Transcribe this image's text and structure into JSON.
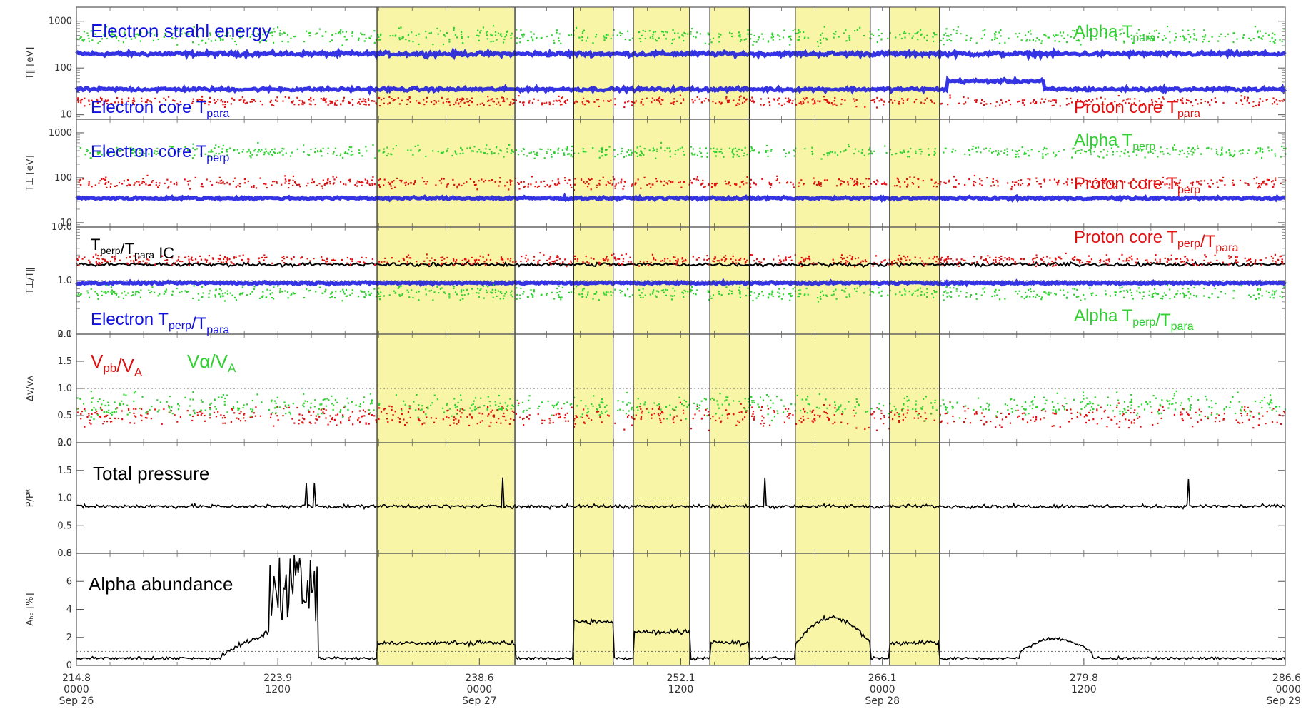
{
  "chart_data": {
    "type": "scatter",
    "colors": {
      "electron": "#1010e0",
      "proton": "#e01010",
      "alpha": "#30d030",
      "black": "#000000",
      "shade": "#f8f6a6"
    },
    "xaxis": {
      "ticks": [
        {
          "value": "214.8",
          "time": "0000",
          "date": "Sep 26"
        },
        {
          "value": "223.9",
          "time": "1200",
          "date": ""
        },
        {
          "value": "238.6",
          "time": "0000",
          "date": "Sep 27"
        },
        {
          "value": "252.1",
          "time": "1200",
          "date": ""
        },
        {
          "value": "266.1",
          "time": "0000",
          "date": "Sep 28"
        },
        {
          "value": "279.8",
          "time": "1200",
          "date": ""
        },
        {
          "value": "286.6",
          "time": "0000",
          "date": "Sep 29"
        }
      ]
    },
    "shaded_intervals_frac": [
      [
        0.2487,
        0.3627
      ],
      [
        0.4113,
        0.444
      ],
      [
        0.4607,
        0.5073
      ],
      [
        0.524,
        0.5567
      ],
      [
        0.5947,
        0.6567
      ],
      [
        0.6727,
        0.714
      ]
    ],
    "panels": [
      {
        "id": "t-para",
        "ylabel": "T∥ [eV]",
        "yscale": "log",
        "ylim": [
          8,
          2000
        ],
        "ticks": [
          "1000",
          "100",
          "10"
        ],
        "tick_values": [
          1000,
          100,
          10
        ],
        "annotations": [
          {
            "id": "electron-strahl-energy",
            "text": "Electron strahl energy",
            "sub": "",
            "tail": "",
            "color": "#1010e0",
            "size": 26
          },
          {
            "id": "electron-core-tpara",
            "text": "Electron core T",
            "sub": "para",
            "tail": "",
            "color": "#1010e0",
            "size": 24
          },
          {
            "id": "alpha-tpara",
            "text": "Alpha T",
            "sub": "para",
            "tail": "",
            "color": "#30d030",
            "size": 24
          },
          {
            "id": "proton-core-tpara",
            "text": "Proton core T",
            "sub": "para",
            "tail": "",
            "color": "#e01010",
            "size": 24
          }
        ],
        "series": [
          {
            "name": "strahl",
            "color": "#1010e0",
            "level": 200,
            "spread": 0.06,
            "kind": "band"
          },
          {
            "name": "e-core",
            "color": "#1010e0",
            "level": 35,
            "spread": 0.05,
            "kind": "band"
          },
          {
            "name": "alpha",
            "color": "#30d030",
            "level": 500,
            "spread": 0.25,
            "kind": "dots"
          },
          {
            "name": "proton",
            "color": "#e01010",
            "level": 20,
            "spread": 0.15,
            "kind": "dots"
          }
        ]
      },
      {
        "id": "t-perp",
        "ylabel": "T⊥ [eV]",
        "yscale": "log",
        "ylim": [
          8,
          2000
        ],
        "ticks": [
          "1000",
          "100",
          "10"
        ],
        "tick_values": [
          1000,
          100,
          10
        ],
        "annotations": [
          {
            "id": "electron-core-tperp",
            "text": "Electron core T",
            "sub": "perp",
            "tail": "",
            "color": "#1010e0",
            "size": 24
          },
          {
            "id": "alpha-tperp",
            "text": "Alpha T",
            "sub": "perp",
            "tail": "",
            "color": "#30d030",
            "size": 24
          },
          {
            "id": "proton-core-tperp",
            "text": "Proton core T",
            "sub": "perp",
            "tail": "",
            "color": "#e01010",
            "size": 24
          }
        ],
        "series": [
          {
            "name": "e-core",
            "color": "#1010e0",
            "level": 35,
            "spread": 0.04,
            "kind": "band"
          },
          {
            "name": "alpha",
            "color": "#30d030",
            "level": 400,
            "spread": 0.2,
            "kind": "dots"
          },
          {
            "name": "proton",
            "color": "#e01010",
            "level": 80,
            "spread": 0.18,
            "kind": "dots"
          }
        ]
      },
      {
        "id": "anisotropy",
        "ylabel": "T⊥/T∥",
        "yscale": "log",
        "ylim": [
          0.1,
          10
        ],
        "ticks": [
          "10.0",
          "1.0",
          "0.1"
        ],
        "tick_values": [
          10,
          1,
          0.1
        ],
        "ref_lines": [
          1
        ],
        "annotations": [
          {
            "id": "tperp-tpara-ic",
            "text": "T",
            "sub": "perp",
            "tail": "/T",
            "sub2": "para",
            "tail2": " IC",
            "color": "#000000",
            "size": 22
          },
          {
            "id": "proton-core-ratio",
            "text": "Proton core T",
            "sub": "perp",
            "tail": "/T",
            "sub2": "para",
            "tail2": "",
            "color": "#e01010",
            "size": 24
          },
          {
            "id": "electron-ratio",
            "text": "Electron T",
            "sub": "perp",
            "tail": "/T",
            "sub2": "para",
            "tail2": "",
            "color": "#1010e0",
            "size": 24
          },
          {
            "id": "alpha-ratio",
            "text": "Alpha T",
            "sub": "perp",
            "tail": "/T",
            "sub2": "para",
            "tail2": "",
            "color": "#30d030",
            "size": 24
          }
        ],
        "series": [
          {
            "name": "ic",
            "color": "#000000",
            "level": 2,
            "spread": 0.05,
            "kind": "line"
          },
          {
            "name": "proton",
            "color": "#e01010",
            "level": 2.5,
            "spread": 0.15,
            "kind": "dots"
          },
          {
            "name": "electron",
            "color": "#1010e0",
            "level": 0.9,
            "spread": 0.03,
            "kind": "band"
          },
          {
            "name": "alpha",
            "color": "#30d030",
            "level": 0.6,
            "spread": 0.18,
            "kind": "dots"
          }
        ]
      },
      {
        "id": "drift",
        "ylabel": "Δv/vᴀ",
        "yscale": "linear",
        "ylim": [
          0,
          2
        ],
        "ticks": [
          "2.0",
          "1.5",
          "1.0",
          "0.5",
          "0.0"
        ],
        "tick_values": [
          2,
          1.5,
          1,
          0.5,
          0
        ],
        "ref_lines": [
          1
        ],
        "annotations": [
          {
            "id": "vpb-va",
            "text": "V",
            "sub": "pb",
            "tail": "/V",
            "sub2": "A",
            "tail2": "",
            "color": "#e01010",
            "size": 26
          },
          {
            "id": "valpha-va",
            "text": "Vα/V",
            "sub": "A",
            "tail": "",
            "color": "#30d030",
            "size": 26
          }
        ],
        "series": [
          {
            "name": "vpb",
            "color": "#e01010",
            "level": 0.5,
            "spread": 0.3,
            "kind": "dots_lin"
          },
          {
            "name": "valpha",
            "color": "#30d030",
            "level": 0.7,
            "spread": 0.3,
            "kind": "dots_lin"
          }
        ]
      },
      {
        "id": "pressure",
        "ylabel": "P/Pᴿ",
        "yscale": "linear",
        "ylim": [
          0,
          2
        ],
        "ticks": [
          "2.0",
          "1.5",
          "1.0",
          "0.5",
          "0.0"
        ],
        "tick_values": [
          2,
          1.5,
          1,
          0.5,
          0
        ],
        "ref_lines": [
          1
        ],
        "annotations": [
          {
            "id": "total-pressure",
            "text": "Total pressure",
            "sub": "",
            "tail": "",
            "color": "#000000",
            "size": 26
          }
        ],
        "series": [
          {
            "name": "ptot",
            "color": "#000000",
            "level": 0.85,
            "spread": 0.05,
            "kind": "line_lin"
          }
        ]
      },
      {
        "id": "abundance",
        "ylabel": "Aₕₑ [%]",
        "yscale": "linear",
        "ylim": [
          0,
          8
        ],
        "ticks": [
          "8",
          "6",
          "4",
          "2",
          "0"
        ],
        "tick_values": [
          8,
          6,
          4,
          2,
          0
        ],
        "ref_lines": [
          1
        ],
        "annotations": [
          {
            "id": "alpha-abundance",
            "text": "Alpha abundance",
            "sub": "",
            "tail": "",
            "color": "#000000",
            "size": 26
          }
        ],
        "series": [
          {
            "name": "ahe",
            "color": "#000000",
            "level": 1,
            "spread": 0.2,
            "kind": "line_lin"
          }
        ]
      }
    ]
  }
}
